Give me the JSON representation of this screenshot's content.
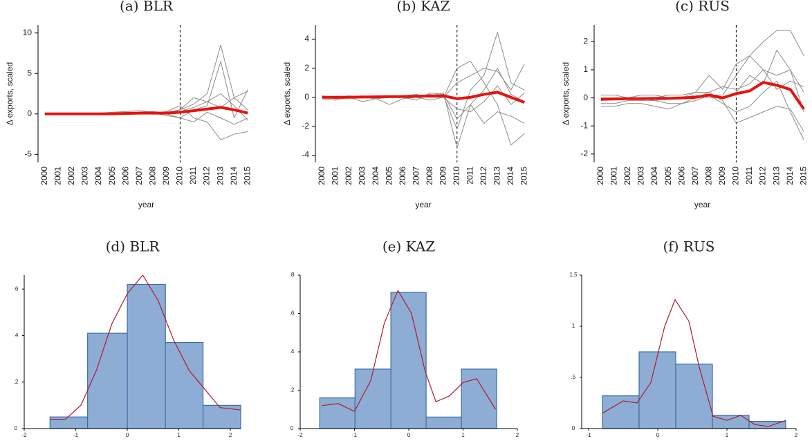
{
  "chart_data": [
    {
      "type": "line",
      "title": "(a) BLR",
      "ylabel": "Δ exports, scaled",
      "xlabel": "year",
      "categories": [
        "2000",
        "2001",
        "2002",
        "2003",
        "2004",
        "2005",
        "2006",
        "2007",
        "2008",
        "2009",
        "2010",
        "2011",
        "2012",
        "2013",
        "2014",
        "2015"
      ],
      "vline": "2010",
      "ylim": [
        -6,
        11
      ],
      "yticks": [
        -5,
        0,
        5,
        10
      ],
      "series": [
        {
          "color": "#8c8c8c",
          "values": [
            0,
            0,
            0,
            0,
            0.1,
            0.1,
            0.2,
            0.2,
            0.3,
            0.1,
            0.5,
            1.2,
            2.5,
            8.5,
            2.0,
            0.5
          ]
        },
        {
          "color": "#8c8c8c",
          "values": [
            0,
            0,
            0.1,
            0,
            0.1,
            0.2,
            0.3,
            0.4,
            0.2,
            0,
            -0.5,
            0.5,
            1.0,
            6.5,
            -0.5,
            3.0
          ]
        },
        {
          "color": "#8c8c8c",
          "values": [
            0,
            0,
            0,
            0.1,
            0,
            0.1,
            0.1,
            0.2,
            0.1,
            0.3,
            1.0,
            -0.5,
            -1.0,
            -3.2,
            -2.5,
            -2.2
          ]
        },
        {
          "color": "#8c8c8c",
          "values": [
            0,
            0,
            0,
            0,
            0,
            0,
            0.1,
            0.1,
            0.2,
            0.2,
            0.5,
            2.0,
            1.5,
            2.5,
            1.0,
            -0.8
          ]
        },
        {
          "color": "#8c8c8c",
          "values": [
            0,
            -0.1,
            0,
            0,
            0,
            0.1,
            0,
            0.1,
            0.1,
            -0.2,
            -0.5,
            -1.0,
            0.2,
            -0.5,
            -1.3,
            -0.5
          ]
        },
        {
          "color": "#8c8c8c",
          "values": [
            0,
            0,
            0,
            0,
            0,
            0,
            0.1,
            0.2,
            0.1,
            0.1,
            0.3,
            0.8,
            1.5,
            0.8,
            2.0,
            2.8
          ]
        },
        {
          "color": "#e8120c",
          "width": 4,
          "values": [
            0,
            0,
            0,
            0,
            0,
            0,
            0.05,
            0.1,
            0.1,
            0.1,
            0.2,
            0.4,
            0.6,
            0.8,
            0.5,
            0.1
          ]
        }
      ]
    },
    {
      "type": "line",
      "title": "(b) KAZ",
      "ylabel": "Δ exports, scaled",
      "xlabel": "year",
      "categories": [
        "2000",
        "2001",
        "2002",
        "2003",
        "2004",
        "2005",
        "2006",
        "2007",
        "2008",
        "2009",
        "2010",
        "2011",
        "2012",
        "2013",
        "2014",
        "2015"
      ],
      "vline": "2010",
      "ylim": [
        -4.5,
        5
      ],
      "yticks": [
        -4,
        -2,
        0,
        2,
        4
      ],
      "series": [
        {
          "color": "#8c8c8c",
          "values": [
            0,
            0,
            0,
            0,
            0,
            0,
            0.1,
            0.1,
            0.2,
            0.1,
            -2.2,
            0.5,
            1.5,
            4.5,
            1.0,
            0.5
          ]
        },
        {
          "color": "#8c8c8c",
          "values": [
            -0.1,
            -0.2,
            0,
            0,
            -0.1,
            0,
            0,
            0,
            0.1,
            0,
            2.0,
            2.5,
            1.0,
            -0.5,
            -3.3,
            -2.5
          ]
        },
        {
          "color": "#8c8c8c",
          "values": [
            0,
            0,
            0.1,
            0,
            0.1,
            0,
            0,
            -0.2,
            0.3,
            0.2,
            -1.5,
            -0.5,
            -1.8,
            -1.0,
            -1.3,
            -1.8
          ]
        },
        {
          "color": "#8c8c8c",
          "values": [
            0.1,
            0,
            0,
            0.1,
            0,
            0,
            0.1,
            0.2,
            0,
            0,
            1.0,
            1.5,
            2.0,
            1.8,
            0.5,
            2.3
          ]
        },
        {
          "color": "#8c8c8c",
          "values": [
            0,
            -0.1,
            0,
            -0.3,
            -0.1,
            -0.5,
            -0.1,
            0,
            -0.2,
            0,
            -0.8,
            -1.0,
            -0.3,
            0.8,
            -0.5,
            0.3
          ]
        },
        {
          "color": "#8c8c8c",
          "values": [
            0,
            0,
            0,
            0,
            0,
            0,
            0,
            0.1,
            0.1,
            0.3,
            -3.5,
            -0.5,
            0.5,
            2.0,
            0.2,
            -0.3
          ]
        },
        {
          "color": "#e8120c",
          "width": 4,
          "values": [
            0,
            0,
            0,
            0.02,
            0.03,
            0.04,
            0.05,
            0.07,
            0.08,
            0.1,
            -0.1,
            0,
            0.2,
            0.35,
            0,
            -0.35
          ]
        }
      ]
    },
    {
      "type": "line",
      "title": "(c) RUS",
      "ylabel": "Δ exports, scaled",
      "xlabel": "year",
      "categories": [
        "2000",
        "2001",
        "2002",
        "2003",
        "2004",
        "2005",
        "2006",
        "2007",
        "2008",
        "2009",
        "2010",
        "2011",
        "2012",
        "2013",
        "2014",
        "2015"
      ],
      "vline": "2010",
      "ylim": [
        -2.3,
        2.6
      ],
      "yticks": [
        -2,
        -1,
        0,
        1,
        2
      ],
      "series": [
        {
          "color": "#8c8c8c",
          "values": [
            0,
            0,
            0,
            0,
            0,
            0,
            0,
            0,
            0.1,
            0.1,
            0.8,
            1.5,
            2.0,
            2.4,
            2.4,
            1.5
          ]
        },
        {
          "color": "#8c8c8c",
          "values": [
            -0.3,
            -0.3,
            -0.2,
            -0.2,
            -0.3,
            -0.4,
            -0.2,
            -0.1,
            0.1,
            -0.2,
            -0.5,
            -0.3,
            0.2,
            0.6,
            -0.5,
            -1.5
          ]
        },
        {
          "color": "#8c8c8c",
          "values": [
            0.1,
            0.1,
            0,
            0,
            0,
            0.1,
            0.1,
            0.2,
            0.8,
            0.3,
            1.2,
            1.5,
            1.0,
            0.8,
            1.0,
            0.2
          ]
        },
        {
          "color": "#8c8c8c",
          "values": [
            -0.2,
            -0.2,
            -0.1,
            -0.1,
            -0.1,
            -0.2,
            -0.2,
            0,
            0.2,
            -0.1,
            -0.9,
            -0.7,
            -0.5,
            -0.3,
            -0.4,
            -1.2
          ]
        },
        {
          "color": "#8c8c8c",
          "values": [
            0,
            0,
            0,
            0.1,
            0.1,
            0,
            0,
            0.1,
            0,
            0,
            0.2,
            0.8,
            0.5,
            1.7,
            1.0,
            -0.5
          ]
        },
        {
          "color": "#8c8c8c",
          "values": [
            -0.1,
            0,
            0,
            0,
            -0.1,
            0,
            0,
            0.2,
            0.2,
            0.4,
            0.3,
            0.5,
            1.0,
            0.3,
            0.6,
            0.4
          ]
        },
        {
          "color": "#e8120c",
          "width": 4,
          "values": [
            -0.05,
            -0.04,
            -0.03,
            -0.03,
            -0.02,
            -0.02,
            0,
            0.02,
            0.1,
            0,
            0.15,
            0.25,
            0.55,
            0.45,
            0.3,
            -0.4
          ]
        }
      ]
    },
    {
      "type": "histogram",
      "title": "(d) BLR",
      "color": "#8eadd4",
      "edge": "#3a6ea5",
      "bins": [
        -1.5,
        -0.77,
        0,
        0.74,
        1.47,
        2.2
      ],
      "values": [
        0.05,
        0.41,
        0.62,
        0.37,
        0.1
      ],
      "xlim": [
        -2,
        2.2
      ],
      "xticks": [
        -2,
        -1,
        0,
        1,
        2
      ],
      "ylim": [
        0,
        0.66
      ],
      "yticks": [
        0,
        {
          "value": 0.2,
          "label": ".2"
        },
        {
          "value": 0.4,
          "label": ".4"
        },
        {
          "value": 0.6,
          "label": ".6"
        }
      ],
      "curve": {
        "color": "#b2182b",
        "x": [
          -1.5,
          -1.2,
          -0.9,
          -0.6,
          -0.3,
          0,
          0.3,
          0.6,
          0.9,
          1.2,
          1.5,
          1.8,
          2.2
        ],
        "y": [
          0.04,
          0.04,
          0.1,
          0.25,
          0.45,
          0.58,
          0.66,
          0.55,
          0.38,
          0.25,
          0.17,
          0.09,
          0.08
        ]
      }
    },
    {
      "type": "histogram",
      "title": "(e) KAZ",
      "color": "#8eadd4",
      "edge": "#3a6ea5",
      "bins": [
        -1.64,
        -0.99,
        -0.33,
        0.32,
        0.97,
        1.62
      ],
      "values": [
        0.16,
        0.31,
        0.71,
        0.06,
        0.31
      ],
      "xlim": [
        -2,
        2
      ],
      "xticks": [
        -2,
        -1,
        0,
        1,
        2
      ],
      "ylim": [
        0,
        0.8
      ],
      "yticks": [
        0,
        {
          "value": 0.2,
          "label": ".2"
        },
        {
          "value": 0.4,
          "label": ".4"
        },
        {
          "value": 0.6,
          "label": ".6"
        },
        {
          "value": 0.8,
          "label": ".8"
        }
      ],
      "curve": {
        "color": "#b2182b",
        "x": [
          -1.6,
          -1.3,
          -1.0,
          -0.7,
          -0.45,
          -0.2,
          0.05,
          0.3,
          0.5,
          0.75,
          1.0,
          1.25,
          1.6
        ],
        "y": [
          0.12,
          0.13,
          0.09,
          0.25,
          0.55,
          0.72,
          0.6,
          0.3,
          0.14,
          0.17,
          0.24,
          0.26,
          0.1
        ]
      }
    },
    {
      "type": "histogram",
      "title": "(f) RUS",
      "color": "#8eadd4",
      "edge": "#3a6ea5",
      "bins": [
        -0.8,
        -0.27,
        0.26,
        0.79,
        1.32,
        1.85
      ],
      "values": [
        0.32,
        0.75,
        0.63,
        0.13,
        0.07
      ],
      "xlim": [
        -1.1,
        2
      ],
      "xticks": [
        -1,
        0,
        1,
        2
      ],
      "ylim": [
        0,
        1.5
      ],
      "yticks": [
        0,
        {
          "value": 0.5,
          "label": ".5"
        },
        1,
        1.5
      ],
      "curve": {
        "color": "#b2182b",
        "x": [
          -0.8,
          -0.5,
          -0.3,
          -0.1,
          0.1,
          0.25,
          0.45,
          0.6,
          0.8,
          1.0,
          1.2,
          1.4,
          1.6,
          1.85
        ],
        "y": [
          0.15,
          0.27,
          0.25,
          0.45,
          1.0,
          1.26,
          1.05,
          0.6,
          0.12,
          0.08,
          0.13,
          0.04,
          0.02,
          0.08
        ]
      }
    }
  ]
}
